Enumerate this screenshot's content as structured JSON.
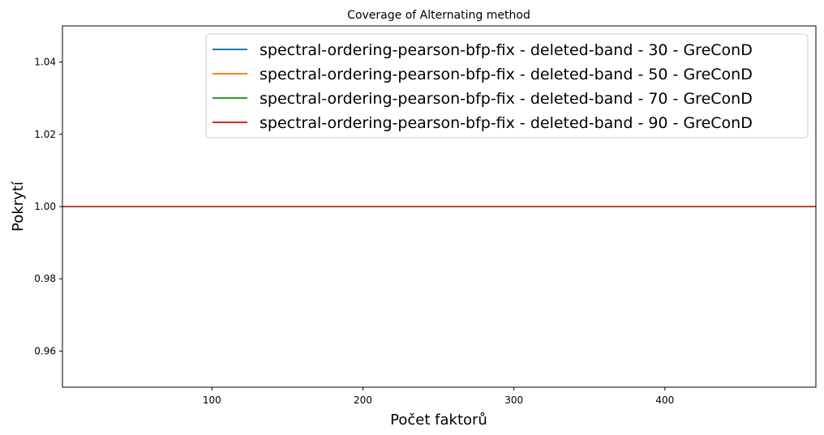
{
  "chart_data": {
    "type": "line",
    "title": "Coverage of Alternating method",
    "xlabel": "Počet faktorů",
    "ylabel": "Pokrytí",
    "xlim": [
      1,
      500
    ],
    "ylim": [
      0.95,
      1.05
    ],
    "xticks": [
      100,
      200,
      300,
      400
    ],
    "yticks": [
      0.96,
      0.98,
      1.0,
      1.02,
      1.04
    ],
    "ytick_labels": [
      "0.96",
      "0.98",
      "1.00",
      "1.02",
      "1.04"
    ],
    "grid": false,
    "legend_position": "top-right",
    "x": [
      1,
      500
    ],
    "series": [
      {
        "name": "spectral-ordering-pearson-bfp-fix - deleted-band - 30 - GreConD",
        "color": "#1f77b4",
        "values": [
          1.0,
          1.0
        ]
      },
      {
        "name": "spectral-ordering-pearson-bfp-fix - deleted-band - 50 - GreConD",
        "color": "#ff7f0e",
        "values": [
          1.0,
          1.0
        ]
      },
      {
        "name": "spectral-ordering-pearson-bfp-fix - deleted-band - 70 - GreConD",
        "color": "#2ca02c",
        "values": [
          1.0,
          1.0
        ]
      },
      {
        "name": "spectral-ordering-pearson-bfp-fix - deleted-band - 90 - GreConD",
        "color": "#d62728",
        "values": [
          1.0,
          1.0
        ]
      }
    ]
  }
}
